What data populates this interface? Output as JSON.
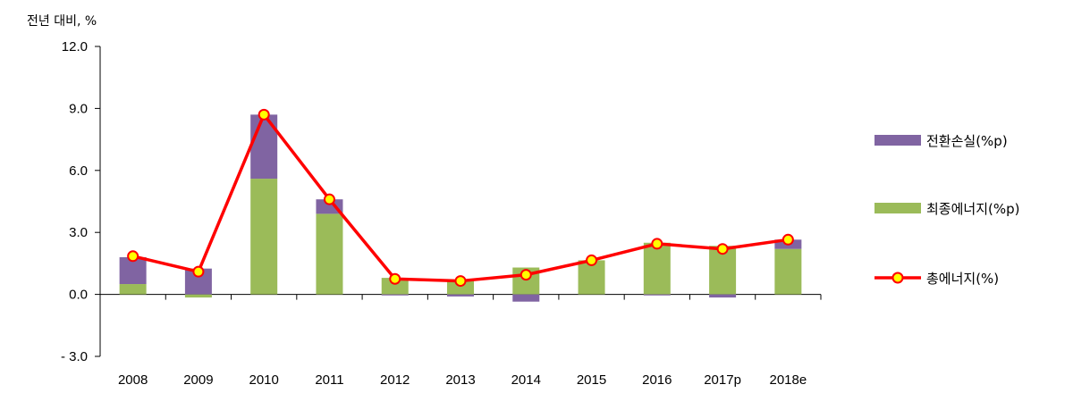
{
  "chart_data": {
    "type": "bar",
    "stacked": true,
    "ylabel": "전년 대비, %",
    "ylim": [
      -3.0,
      12.0
    ],
    "yticks": [
      "- 3.0",
      "0.0",
      "3.0",
      "6.0",
      "9.0",
      "12.0"
    ],
    "ytick_values": [
      -3.0,
      0.0,
      3.0,
      6.0,
      9.0,
      12.0
    ],
    "categories": [
      "2008",
      "2009",
      "2010",
      "2011",
      "2012",
      "2013",
      "2014",
      "2015",
      "2016",
      "2017p",
      "2018e"
    ],
    "grid": false,
    "legend_position": "right",
    "series": [
      {
        "name": "전환손실(%p)",
        "kind": "bar",
        "color": "#8064a2",
        "values": [
          1.3,
          1.25,
          3.1,
          0.7,
          -0.05,
          -0.1,
          -0.35,
          0.0,
          -0.05,
          -0.15,
          0.45
        ]
      },
      {
        "name": "최종에너지(%p)",
        "kind": "bar",
        "color": "#9bbb59",
        "values": [
          0.5,
          -0.15,
          5.6,
          3.9,
          0.8,
          0.7,
          1.3,
          1.65,
          2.5,
          2.35,
          2.2
        ]
      },
      {
        "name": "총에너지(%)",
        "kind": "line",
        "color": "#ff0000",
        "marker_fill": "#ffff00",
        "values": [
          1.85,
          1.1,
          8.7,
          4.6,
          0.75,
          0.65,
          0.95,
          1.65,
          2.45,
          2.2,
          2.65
        ]
      }
    ]
  }
}
